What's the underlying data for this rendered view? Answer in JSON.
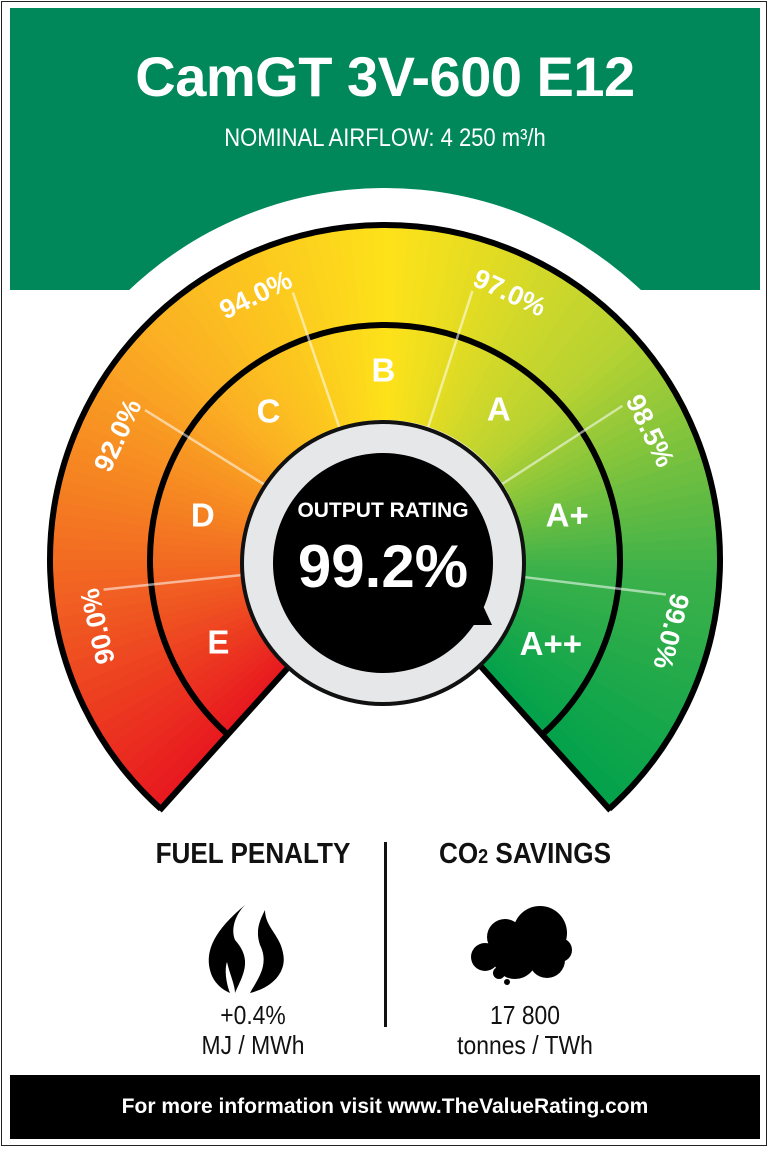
{
  "header": {
    "title": "CamGT 3V-600 E12",
    "subtitle": "NOMINAL AIRFLOW: 4 250 m³/h",
    "color": "#00875A"
  },
  "gauge": {
    "center_label": "OUTPUT RATING",
    "output_rating": "99.2%",
    "grades": [
      "E",
      "D",
      "C",
      "B",
      "A",
      "A+",
      "A++"
    ],
    "thresholds": [
      "90.0%",
      "92.0%",
      "94.0%",
      "97.0%",
      "98.5%",
      "99.0%"
    ],
    "gradient_colors": [
      "#E8191F",
      "#F26A22",
      "#FBB123",
      "#FDE21A",
      "#B7D232",
      "#3CB14A",
      "#00A14B"
    ]
  },
  "fuel_penalty": {
    "heading": "FUEL PENALTY",
    "icon": "flame-icon",
    "value": "+0.4%",
    "unit": "MJ / MWh"
  },
  "co2_savings": {
    "heading_prefix": "CO",
    "heading_sub": "2",
    "heading_suffix": " SAVINGS",
    "icon": "cloud-icon",
    "value": "17 800",
    "unit": "tonnes / TWh"
  },
  "footer": {
    "text": "For more information visit www.TheValueRating.com"
  }
}
